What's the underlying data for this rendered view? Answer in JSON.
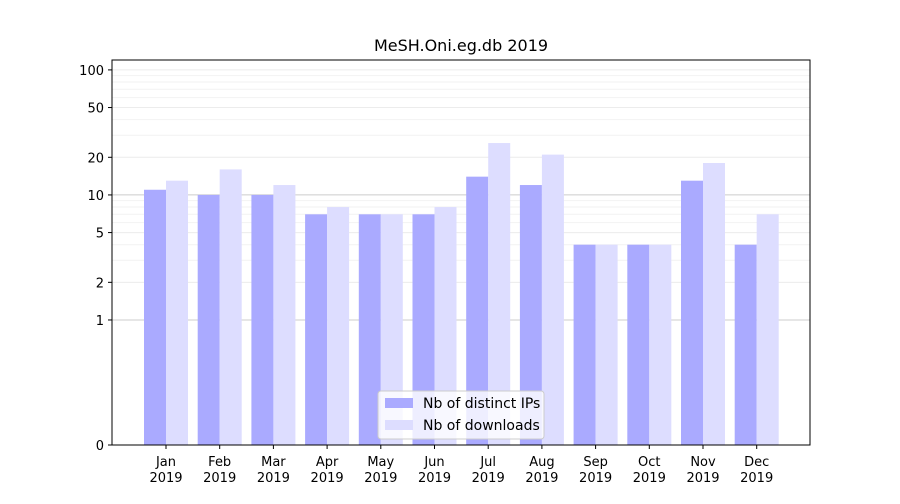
{
  "chart_data": {
    "type": "bar",
    "title": "MeSH.Oni.eg.db 2019",
    "xlabel": "",
    "ylabel": "",
    "yscale": "symlog",
    "ylim": [
      0,
      120
    ],
    "yticks": [
      0,
      1,
      2,
      5,
      10,
      20,
      50,
      100
    ],
    "ytick_labels": [
      "0",
      "1",
      "2",
      "5",
      "10",
      "20",
      "50",
      "100"
    ],
    "grid": "horizontal",
    "legend_position": "bottom-center",
    "categories": [
      {
        "month": "Jan",
        "year": "2019"
      },
      {
        "month": "Feb",
        "year": "2019"
      },
      {
        "month": "Mar",
        "year": "2019"
      },
      {
        "month": "Apr",
        "year": "2019"
      },
      {
        "month": "May",
        "year": "2019"
      },
      {
        "month": "Jun",
        "year": "2019"
      },
      {
        "month": "Jul",
        "year": "2019"
      },
      {
        "month": "Aug",
        "year": "2019"
      },
      {
        "month": "Sep",
        "year": "2019"
      },
      {
        "month": "Oct",
        "year": "2019"
      },
      {
        "month": "Nov",
        "year": "2019"
      },
      {
        "month": "Dec",
        "year": "2019"
      }
    ],
    "series": [
      {
        "name": "Nb of distinct IPs",
        "color": "#aaaaff",
        "values": [
          11,
          10,
          10,
          7,
          7,
          7,
          14,
          12,
          4,
          4,
          13,
          4
        ]
      },
      {
        "name": "Nb of downloads",
        "color": "#ddddff",
        "values": [
          13,
          16,
          12,
          8,
          7,
          8,
          26,
          21,
          4,
          4,
          18,
          7
        ]
      }
    ]
  }
}
